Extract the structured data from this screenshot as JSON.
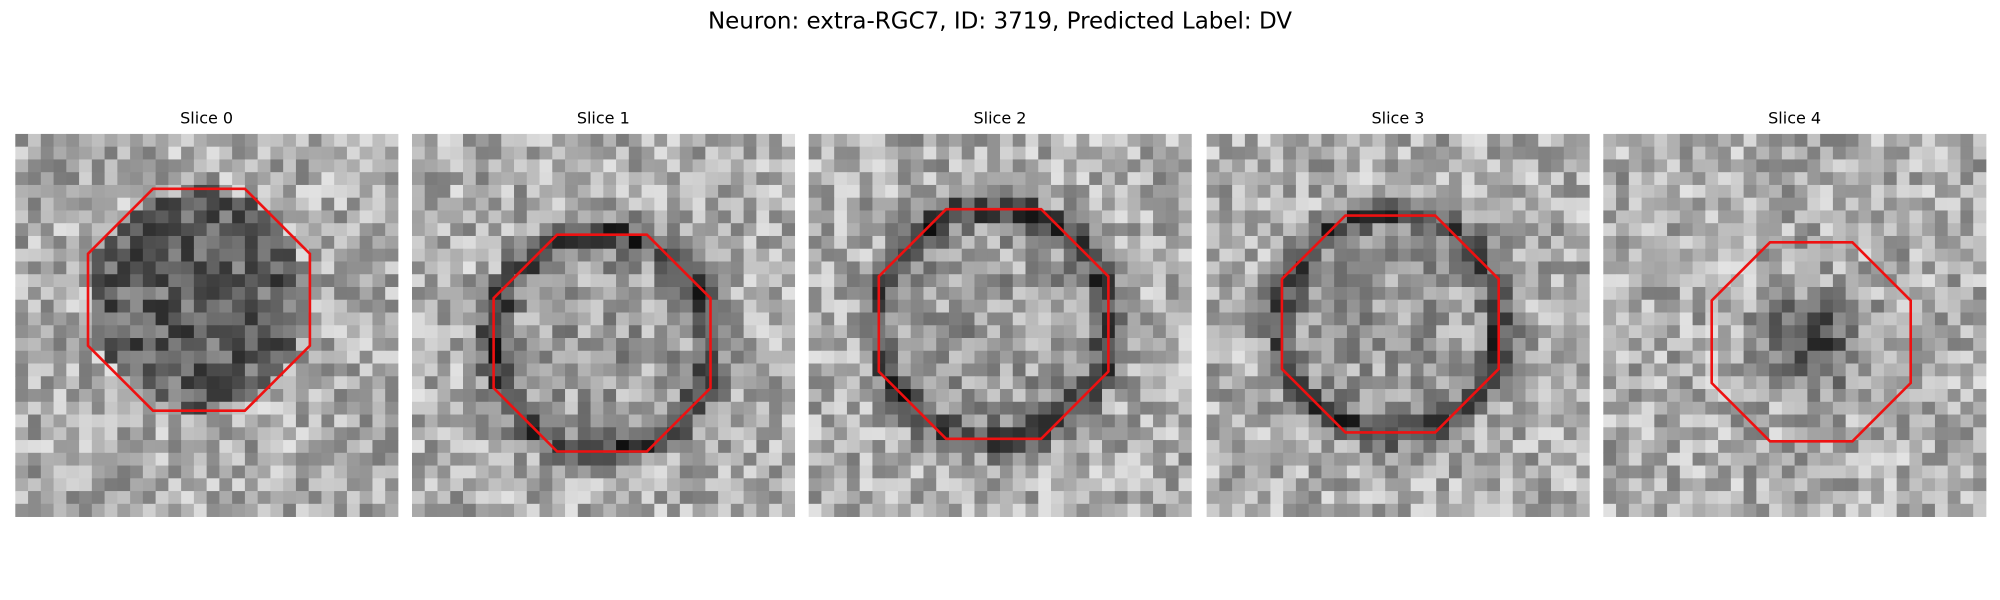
{
  "figure": {
    "title": "Neuron: extra-RGC7, ID: 3719, Predicted Label: DV",
    "panels": [
      {
        "title": "Slice 0"
      },
      {
        "title": "Slice 1"
      },
      {
        "title": "Slice 2"
      },
      {
        "title": "Slice 3"
      },
      {
        "title": "Slice 4"
      }
    ]
  }
}
